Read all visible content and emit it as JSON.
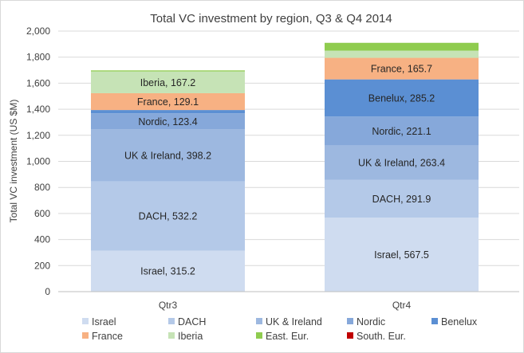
{
  "chart_data": {
    "type": "bar",
    "stacked": true,
    "title": "Total VC investment by region, Q3 & Q4 2014",
    "xlabel": "",
    "ylabel": "Total VC investment (US $M)",
    "ylim": [
      0,
      2000
    ],
    "yticks": [
      "0",
      "200",
      "400",
      "600",
      "800",
      "1,000",
      "1,200",
      "1,400",
      "1,600",
      "1,800",
      "2,000"
    ],
    "categories": [
      "Qtr3",
      "Qtr4"
    ],
    "grid": true,
    "legend_position": "bottom",
    "series": [
      {
        "name": "Israel",
        "color": "#cfdcf0",
        "values": [
          315.2,
          567.5
        ],
        "labels": [
          "Israel, 315.2",
          "Israel, 567.5"
        ]
      },
      {
        "name": "DACH",
        "color": "#b4c9e8",
        "values": [
          532.2,
          291.9
        ],
        "labels": [
          "DACH, 532.2",
          "DACH, 291.9"
        ]
      },
      {
        "name": "UK & Ireland",
        "color": "#9db8e0",
        "values": [
          398.2,
          263.4
        ],
        "labels": [
          "UK & Ireland, 398.2",
          "UK & Ireland, 263.4"
        ]
      },
      {
        "name": "Nordic",
        "color": "#86a8da",
        "values": [
          123.4,
          221.1
        ],
        "labels": [
          "Nordic, 123.4",
          "Nordic, 221.1"
        ]
      },
      {
        "name": "Benelux",
        "color": "#5b8fd3",
        "values": [
          25,
          285.2
        ],
        "labels": [
          "",
          "Benelux, 285.2"
        ]
      },
      {
        "name": "France",
        "color": "#f7b183",
        "values": [
          129.1,
          165.7
        ],
        "labels": [
          "France, 129.1",
          "France, 165.7"
        ]
      },
      {
        "name": "Iberia",
        "color": "#c6e3b6",
        "values": [
          167.2,
          55
        ],
        "labels": [
          "Iberia, 167.2",
          ""
        ]
      },
      {
        "name": "East. Eur.",
        "color": "#8fcc4f",
        "values": [
          8,
          60
        ],
        "labels": [
          "",
          ""
        ]
      },
      {
        "name": "South. Eur.",
        "color": "#c00000",
        "values": [
          0,
          0
        ],
        "labels": [
          "",
          ""
        ]
      }
    ]
  }
}
